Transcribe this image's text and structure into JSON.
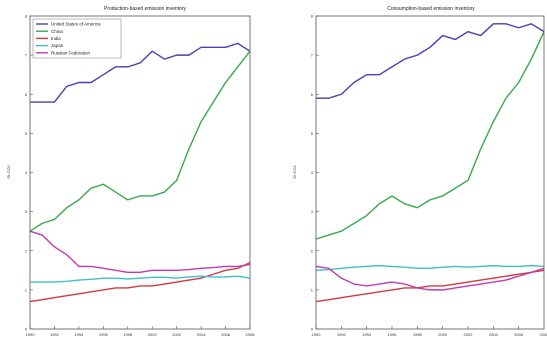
{
  "chart_data": [
    {
      "type": "line",
      "title": "Production-based emission inventory",
      "ylabel": "Gt CO2",
      "ylim": [
        0,
        8
      ],
      "y_ticks": [
        "0",
        "1",
        "2",
        "3",
        "4",
        "5",
        "6",
        "7",
        "8"
      ],
      "x_ticks": [
        "1990",
        "1992",
        "1994",
        "1996",
        "1998",
        "2000",
        "2002",
        "2004",
        "2006",
        "2008"
      ],
      "x": [
        1990,
        1991,
        1992,
        1993,
        1994,
        1995,
        1996,
        1997,
        1998,
        1999,
        2000,
        2001,
        2002,
        2003,
        2004,
        2005,
        2006,
        2007,
        2008
      ],
      "legend": "top-left",
      "series": [
        {
          "name": "United States of America",
          "color": "#4a3fb5",
          "values": [
            5.8,
            5.8,
            5.8,
            6.2,
            6.3,
            6.3,
            6.5,
            6.7,
            6.7,
            6.8,
            7.1,
            6.9,
            7.0,
            7.0,
            7.2,
            7.2,
            7.2,
            7.3,
            7.1
          ]
        },
        {
          "name": "China",
          "color": "#3aa84a",
          "values": [
            2.5,
            2.7,
            2.8,
            3.1,
            3.3,
            3.6,
            3.7,
            3.5,
            3.3,
            3.4,
            3.4,
            3.5,
            3.8,
            4.6,
            5.3,
            5.8,
            6.3,
            6.7,
            7.1
          ]
        },
        {
          "name": "India",
          "color": "#d23b3b",
          "values": [
            0.7,
            0.75,
            0.8,
            0.85,
            0.9,
            0.95,
            1.0,
            1.05,
            1.05,
            1.1,
            1.1,
            1.15,
            1.2,
            1.25,
            1.3,
            1.4,
            1.5,
            1.55,
            1.7
          ]
        },
        {
          "name": "Japan",
          "color": "#3fc0c8",
          "values": [
            1.2,
            1.2,
            1.2,
            1.22,
            1.25,
            1.27,
            1.3,
            1.3,
            1.28,
            1.3,
            1.32,
            1.32,
            1.3,
            1.33,
            1.35,
            1.33,
            1.33,
            1.35,
            1.3
          ]
        },
        {
          "name": "Russian Federation",
          "color": "#c43aa8",
          "values": [
            2.5,
            2.4,
            2.1,
            1.9,
            1.6,
            1.6,
            1.55,
            1.5,
            1.45,
            1.45,
            1.5,
            1.5,
            1.5,
            1.52,
            1.55,
            1.57,
            1.6,
            1.6,
            1.65
          ]
        }
      ]
    },
    {
      "type": "line",
      "title": "Consumption-based emission inventory",
      "ylabel": "Gt CO2",
      "ylim": [
        0,
        8
      ],
      "y_ticks": [
        "0",
        "1",
        "2",
        "3",
        "4",
        "5",
        "6",
        "7",
        "8"
      ],
      "x_ticks": [
        "1990",
        "1992",
        "1994",
        "1996",
        "1998",
        "2000",
        "2002",
        "2004",
        "2006",
        "2008"
      ],
      "x": [
        1990,
        1991,
        1992,
        1993,
        1994,
        1995,
        1996,
        1997,
        1998,
        1999,
        2000,
        2001,
        2002,
        2003,
        2004,
        2005,
        2006,
        2007,
        2008
      ],
      "series": [
        {
          "name": "United States of America",
          "color": "#4a3fb5",
          "values": [
            5.9,
            5.9,
            6.0,
            6.3,
            6.5,
            6.5,
            6.7,
            6.9,
            7.0,
            7.2,
            7.5,
            7.4,
            7.6,
            7.5,
            7.8,
            7.8,
            7.7,
            7.8,
            7.6
          ]
        },
        {
          "name": "China",
          "color": "#3aa84a",
          "values": [
            2.3,
            2.4,
            2.5,
            2.7,
            2.9,
            3.2,
            3.4,
            3.2,
            3.1,
            3.3,
            3.4,
            3.6,
            3.8,
            4.6,
            5.3,
            5.9,
            6.3,
            6.9,
            7.6
          ]
        },
        {
          "name": "India",
          "color": "#d23b3b",
          "values": [
            0.7,
            0.75,
            0.8,
            0.85,
            0.9,
            0.95,
            1.0,
            1.05,
            1.05,
            1.1,
            1.1,
            1.15,
            1.2,
            1.25,
            1.3,
            1.35,
            1.4,
            1.45,
            1.5
          ]
        },
        {
          "name": "Japan",
          "color": "#3fc0c8",
          "values": [
            1.5,
            1.52,
            1.55,
            1.58,
            1.6,
            1.62,
            1.6,
            1.58,
            1.55,
            1.55,
            1.58,
            1.6,
            1.58,
            1.6,
            1.62,
            1.6,
            1.6,
            1.62,
            1.6
          ]
        },
        {
          "name": "Russian Federation",
          "color": "#c43aa8",
          "values": [
            1.6,
            1.55,
            1.3,
            1.15,
            1.1,
            1.15,
            1.2,
            1.15,
            1.05,
            1.0,
            1.0,
            1.05,
            1.1,
            1.15,
            1.2,
            1.25,
            1.35,
            1.45,
            1.55
          ]
        }
      ]
    }
  ]
}
